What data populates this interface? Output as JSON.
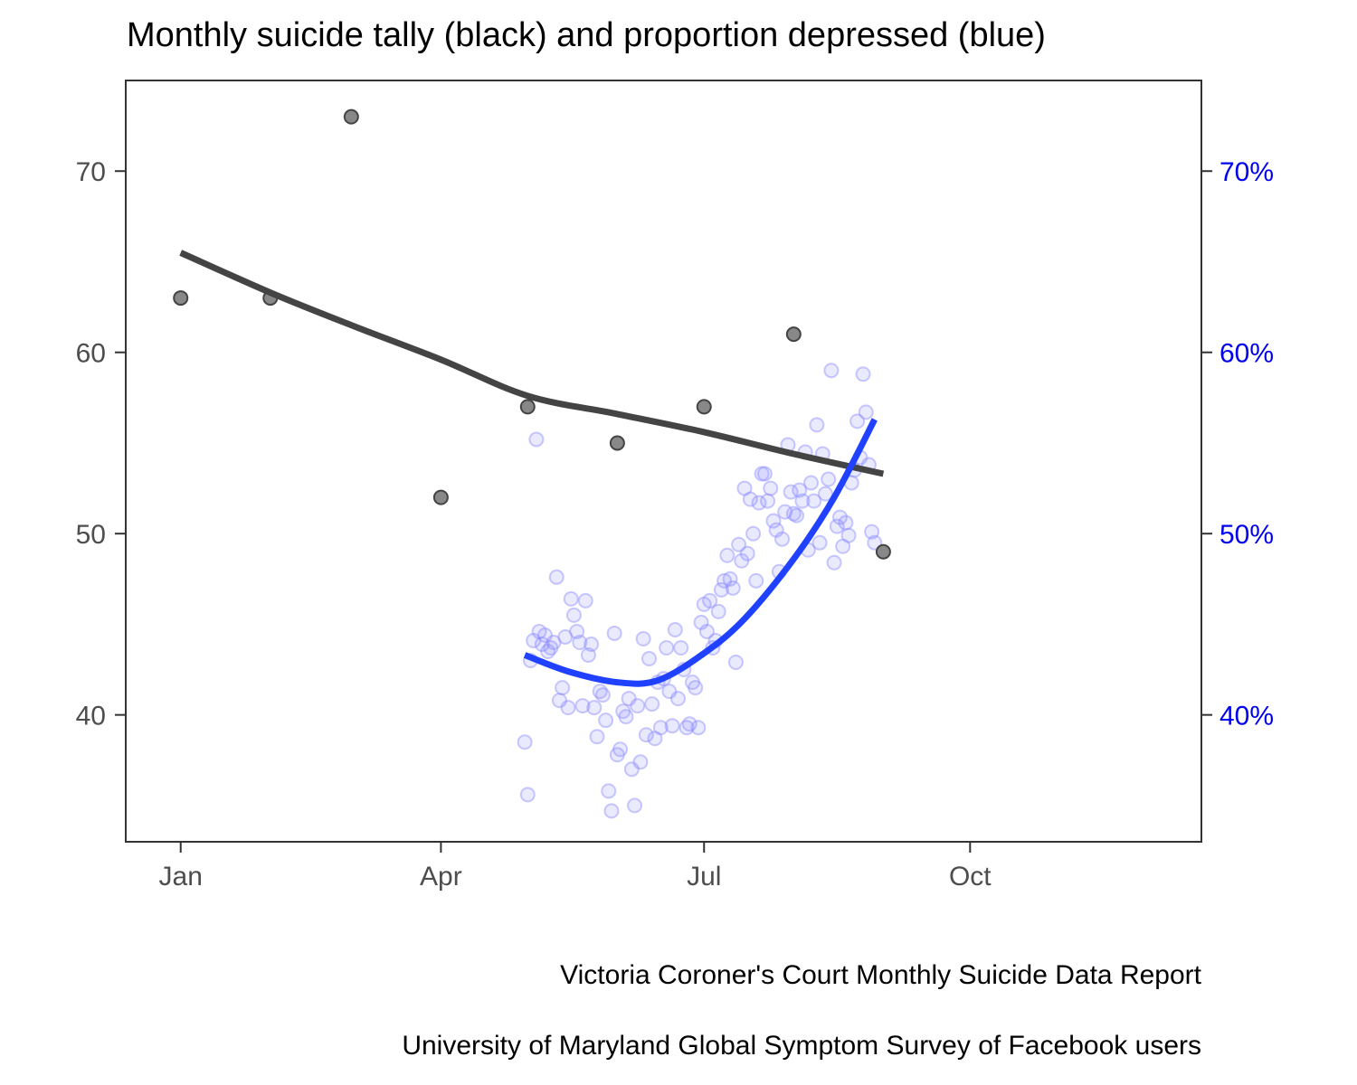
{
  "chart_data": {
    "type": "scatter",
    "title": "Monthly suicide tally (black) and proportion depressed (blue)",
    "xlabel": "",
    "ylabel": "",
    "x_ticks": [
      "Jan",
      "Apr",
      "Jul",
      "Oct"
    ],
    "x_tick_dates": [
      "2021-01-01",
      "2021-04-01",
      "2021-07-01",
      "2021-10-01"
    ],
    "xlim": [
      "2020-12-13",
      "2021-12-20"
    ],
    "ylim_left": [
      33,
      75
    ],
    "yticks_left": [
      "40",
      "50",
      "60",
      "70"
    ],
    "yticks_left_values": [
      40,
      50,
      60,
      70
    ],
    "ylim_right": [
      0.33,
      0.75
    ],
    "yticks_right": [
      "40%",
      "50%",
      "60%",
      "70%"
    ],
    "yticks_right_values": [
      0.4,
      0.5,
      0.6,
      0.7
    ],
    "grid": false,
    "colors": {
      "suicides": "#444444",
      "suicide_points": "#888888",
      "depressed": "#2041ff",
      "depressed_points": "#8a8aff",
      "right_axis": "#0000ee",
      "axes": "#333333"
    },
    "series": [
      {
        "name": "suicides",
        "axis": "left",
        "points": [
          {
            "x": "2021-01-01",
            "y": 63
          },
          {
            "x": "2021-02-01",
            "y": 63
          },
          {
            "x": "2021-03-01",
            "y": 73
          },
          {
            "x": "2021-04-01",
            "y": 52
          },
          {
            "x": "2021-05-01",
            "y": 57
          },
          {
            "x": "2021-06-01",
            "y": 55
          },
          {
            "x": "2021-07-01",
            "y": 57
          },
          {
            "x": "2021-08-01",
            "y": 61
          },
          {
            "x": "2021-09-01",
            "y": 49
          }
        ],
        "smooth": [
          {
            "x": "2021-01-01",
            "y": 65.5
          },
          {
            "x": "2021-02-01",
            "y": 63.3
          },
          {
            "x": "2021-03-01",
            "y": 61.5
          },
          {
            "x": "2021-04-01",
            "y": 59.6
          },
          {
            "x": "2021-05-01",
            "y": 57.6
          },
          {
            "x": "2021-06-01",
            "y": 56.6
          },
          {
            "x": "2021-07-01",
            "y": 55.6
          },
          {
            "x": "2021-08-01",
            "y": 54.4
          },
          {
            "x": "2021-09-01",
            "y": 53.3
          }
        ]
      },
      {
        "name": "depressed",
        "axis": "right",
        "points": [
          {
            "x": "2021-04-30",
            "y": 0.385
          },
          {
            "x": "2021-05-01",
            "y": 0.356
          },
          {
            "x": "2021-05-02",
            "y": 0.43
          },
          {
            "x": "2021-05-03",
            "y": 0.441
          },
          {
            "x": "2021-05-04",
            "y": 0.552
          },
          {
            "x": "2021-05-05",
            "y": 0.446
          },
          {
            "x": "2021-05-06",
            "y": 0.439
          },
          {
            "x": "2021-05-07",
            "y": 0.444
          },
          {
            "x": "2021-05-08",
            "y": 0.435
          },
          {
            "x": "2021-05-09",
            "y": 0.437
          },
          {
            "x": "2021-05-10",
            "y": 0.44
          },
          {
            "x": "2021-05-11",
            "y": 0.476
          },
          {
            "x": "2021-05-12",
            "y": 0.408
          },
          {
            "x": "2021-05-13",
            "y": 0.415
          },
          {
            "x": "2021-05-14",
            "y": 0.443
          },
          {
            "x": "2021-05-15",
            "y": 0.404
          },
          {
            "x": "2021-05-16",
            "y": 0.464
          },
          {
            "x": "2021-05-17",
            "y": 0.455
          },
          {
            "x": "2021-05-18",
            "y": 0.446
          },
          {
            "x": "2021-05-19",
            "y": 0.44
          },
          {
            "x": "2021-05-20",
            "y": 0.405
          },
          {
            "x": "2021-05-21",
            "y": 0.463
          },
          {
            "x": "2021-05-22",
            "y": 0.433
          },
          {
            "x": "2021-05-23",
            "y": 0.439
          },
          {
            "x": "2021-05-24",
            "y": 0.404
          },
          {
            "x": "2021-05-25",
            "y": 0.388
          },
          {
            "x": "2021-05-26",
            "y": 0.413
          },
          {
            "x": "2021-05-27",
            "y": 0.411
          },
          {
            "x": "2021-05-28",
            "y": 0.397
          },
          {
            "x": "2021-05-29",
            "y": 0.358
          },
          {
            "x": "2021-05-30",
            "y": 0.347
          },
          {
            "x": "2021-05-31",
            "y": 0.445
          },
          {
            "x": "2021-06-01",
            "y": 0.378
          },
          {
            "x": "2021-06-02",
            "y": 0.381
          },
          {
            "x": "2021-06-03",
            "y": 0.402
          },
          {
            "x": "2021-06-04",
            "y": 0.399
          },
          {
            "x": "2021-06-05",
            "y": 0.409
          },
          {
            "x": "2021-06-06",
            "y": 0.37
          },
          {
            "x": "2021-06-07",
            "y": 0.35
          },
          {
            "x": "2021-06-08",
            "y": 0.405
          },
          {
            "x": "2021-06-09",
            "y": 0.374
          },
          {
            "x": "2021-06-10",
            "y": 0.442
          },
          {
            "x": "2021-06-11",
            "y": 0.389
          },
          {
            "x": "2021-06-12",
            "y": 0.431
          },
          {
            "x": "2021-06-13",
            "y": 0.406
          },
          {
            "x": "2021-06-14",
            "y": 0.387
          },
          {
            "x": "2021-06-15",
            "y": 0.418
          },
          {
            "x": "2021-06-16",
            "y": 0.393
          },
          {
            "x": "2021-06-17",
            "y": 0.42
          },
          {
            "x": "2021-06-18",
            "y": 0.437
          },
          {
            "x": "2021-06-19",
            "y": 0.413
          },
          {
            "x": "2021-06-20",
            "y": 0.394
          },
          {
            "x": "2021-06-21",
            "y": 0.447
          },
          {
            "x": "2021-06-22",
            "y": 0.409
          },
          {
            "x": "2021-06-23",
            "y": 0.437
          },
          {
            "x": "2021-06-24",
            "y": 0.425
          },
          {
            "x": "2021-06-25",
            "y": 0.393
          },
          {
            "x": "2021-06-26",
            "y": 0.395
          },
          {
            "x": "2021-06-27",
            "y": 0.418
          },
          {
            "x": "2021-06-28",
            "y": 0.415
          },
          {
            "x": "2021-06-29",
            "y": 0.393
          },
          {
            "x": "2021-06-30",
            "y": 0.451
          },
          {
            "x": "2021-07-01",
            "y": 0.461
          },
          {
            "x": "2021-07-02",
            "y": 0.446
          },
          {
            "x": "2021-07-03",
            "y": 0.463
          },
          {
            "x": "2021-07-04",
            "y": 0.437
          },
          {
            "x": "2021-07-05",
            "y": 0.441
          },
          {
            "x": "2021-07-06",
            "y": 0.457
          },
          {
            "x": "2021-07-07",
            "y": 0.469
          },
          {
            "x": "2021-07-08",
            "y": 0.474
          },
          {
            "x": "2021-07-09",
            "y": 0.488
          },
          {
            "x": "2021-07-10",
            "y": 0.475
          },
          {
            "x": "2021-07-11",
            "y": 0.47
          },
          {
            "x": "2021-07-12",
            "y": 0.429
          },
          {
            "x": "2021-07-13",
            "y": 0.494
          },
          {
            "x": "2021-07-14",
            "y": 0.485
          },
          {
            "x": "2021-07-15",
            "y": 0.525
          },
          {
            "x": "2021-07-16",
            "y": 0.489
          },
          {
            "x": "2021-07-17",
            "y": 0.519
          },
          {
            "x": "2021-07-18",
            "y": 0.5
          },
          {
            "x": "2021-07-19",
            "y": 0.474
          },
          {
            "x": "2021-07-20",
            "y": 0.517
          },
          {
            "x": "2021-07-21",
            "y": 0.533
          },
          {
            "x": "2021-07-22",
            "y": 0.533
          },
          {
            "x": "2021-07-23",
            "y": 0.518
          },
          {
            "x": "2021-07-24",
            "y": 0.525
          },
          {
            "x": "2021-07-25",
            "y": 0.507
          },
          {
            "x": "2021-07-26",
            "y": 0.502
          },
          {
            "x": "2021-07-27",
            "y": 0.479
          },
          {
            "x": "2021-07-28",
            "y": 0.497
          },
          {
            "x": "2021-07-29",
            "y": 0.512
          },
          {
            "x": "2021-07-30",
            "y": 0.549
          },
          {
            "x": "2021-07-31",
            "y": 0.523
          },
          {
            "x": "2021-08-01",
            "y": 0.511
          },
          {
            "x": "2021-08-02",
            "y": 0.51
          },
          {
            "x": "2021-08-03",
            "y": 0.524
          },
          {
            "x": "2021-08-04",
            "y": 0.518
          },
          {
            "x": "2021-08-05",
            "y": 0.545
          },
          {
            "x": "2021-08-06",
            "y": 0.491
          },
          {
            "x": "2021-08-07",
            "y": 0.528
          },
          {
            "x": "2021-08-08",
            "y": 0.518
          },
          {
            "x": "2021-08-09",
            "y": 0.56
          },
          {
            "x": "2021-08-10",
            "y": 0.495
          },
          {
            "x": "2021-08-11",
            "y": 0.544
          },
          {
            "x": "2021-08-12",
            "y": 0.522
          },
          {
            "x": "2021-08-13",
            "y": 0.53
          },
          {
            "x": "2021-08-14",
            "y": 0.59
          },
          {
            "x": "2021-08-15",
            "y": 0.484
          },
          {
            "x": "2021-08-16",
            "y": 0.504
          },
          {
            "x": "2021-08-17",
            "y": 0.509
          },
          {
            "x": "2021-08-18",
            "y": 0.493
          },
          {
            "x": "2021-08-19",
            "y": 0.506
          },
          {
            "x": "2021-08-20",
            "y": 0.499
          },
          {
            "x": "2021-08-21",
            "y": 0.528
          },
          {
            "x": "2021-08-22",
            "y": 0.535
          },
          {
            "x": "2021-08-23",
            "y": 0.562
          },
          {
            "x": "2021-08-24",
            "y": 0.542
          },
          {
            "x": "2021-08-25",
            "y": 0.588
          },
          {
            "x": "2021-08-26",
            "y": 0.567
          },
          {
            "x": "2021-08-27",
            "y": 0.538
          },
          {
            "x": "2021-08-28",
            "y": 0.501
          },
          {
            "x": "2021-08-29",
            "y": 0.495
          }
        ],
        "smooth": [
          {
            "x": "2021-04-30",
            "y": 0.433
          },
          {
            "x": "2021-05-15",
            "y": 0.424
          },
          {
            "x": "2021-06-01",
            "y": 0.418
          },
          {
            "x": "2021-06-15",
            "y": 0.419
          },
          {
            "x": "2021-07-01",
            "y": 0.434
          },
          {
            "x": "2021-07-15",
            "y": 0.453
          },
          {
            "x": "2021-08-01",
            "y": 0.486
          },
          {
            "x": "2021-08-15",
            "y": 0.52
          },
          {
            "x": "2021-08-29",
            "y": 0.563
          }
        ]
      }
    ],
    "captions": [
      "Victoria Coroner's Court Monthly Suicide Data Report",
      "University of Maryland Global Symptom Survey of Facebook users"
    ]
  }
}
